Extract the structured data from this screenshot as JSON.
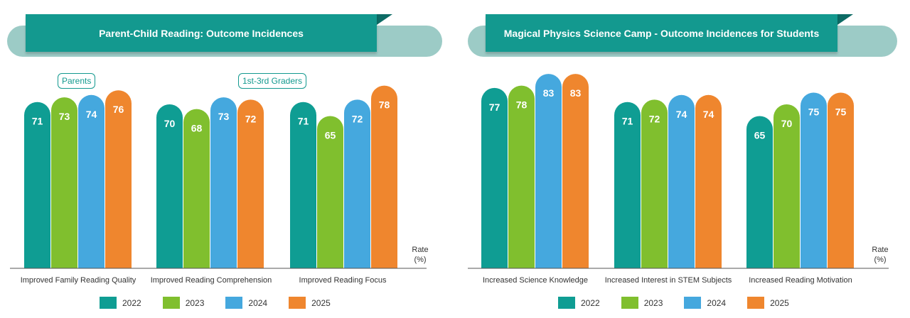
{
  "colors": {
    "2022": "#0f9d93",
    "2023": "#80bf2e",
    "2024": "#45a8de",
    "2025": "#ef862e",
    "header": "#13998f",
    "header_pill": "#9ccbc6"
  },
  "rate_label": "Rate\n(%)",
  "tags": {
    "parents": "Parents",
    "graders": "1st-3rd Graders"
  },
  "legend": [
    "2022",
    "2023",
    "2024",
    "2025"
  ],
  "chart_data": [
    {
      "type": "bar",
      "title": "Parent-Child Reading: Outcome Incidences",
      "ylabel": "Rate\n(%)",
      "ylim": [
        0,
        80
      ],
      "categories": [
        "Improved Family Reading Quality",
        "Improved Reading Comprehension",
        "Improved Reading Focus"
      ],
      "series": [
        {
          "name": "2022",
          "values": [
            71,
            70,
            71
          ]
        },
        {
          "name": "2023",
          "values": [
            73,
            68,
            65
          ]
        },
        {
          "name": "2024",
          "values": [
            74,
            73,
            72
          ]
        },
        {
          "name": "2025",
          "values": [
            76,
            72,
            78
          ]
        }
      ],
      "legend_position": "bottom"
    },
    {
      "type": "bar",
      "title": "Magical Physics Science Camp - Outcome Incidences for Students",
      "ylabel": "Rate\n(%)",
      "ylim": [
        0,
        80
      ],
      "categories": [
        "Increased Science Knowledge",
        "Increased Interest in STEM Subjects",
        "Increased Reading Motivation"
      ],
      "series": [
        {
          "name": "2022",
          "values": [
            77,
            71,
            65
          ]
        },
        {
          "name": "2023",
          "values": [
            78,
            72,
            70
          ]
        },
        {
          "name": "2024",
          "values": [
            83,
            74,
            75
          ]
        },
        {
          "name": "2025",
          "values": [
            83,
            74,
            75
          ]
        }
      ],
      "legend_position": "bottom"
    }
  ]
}
